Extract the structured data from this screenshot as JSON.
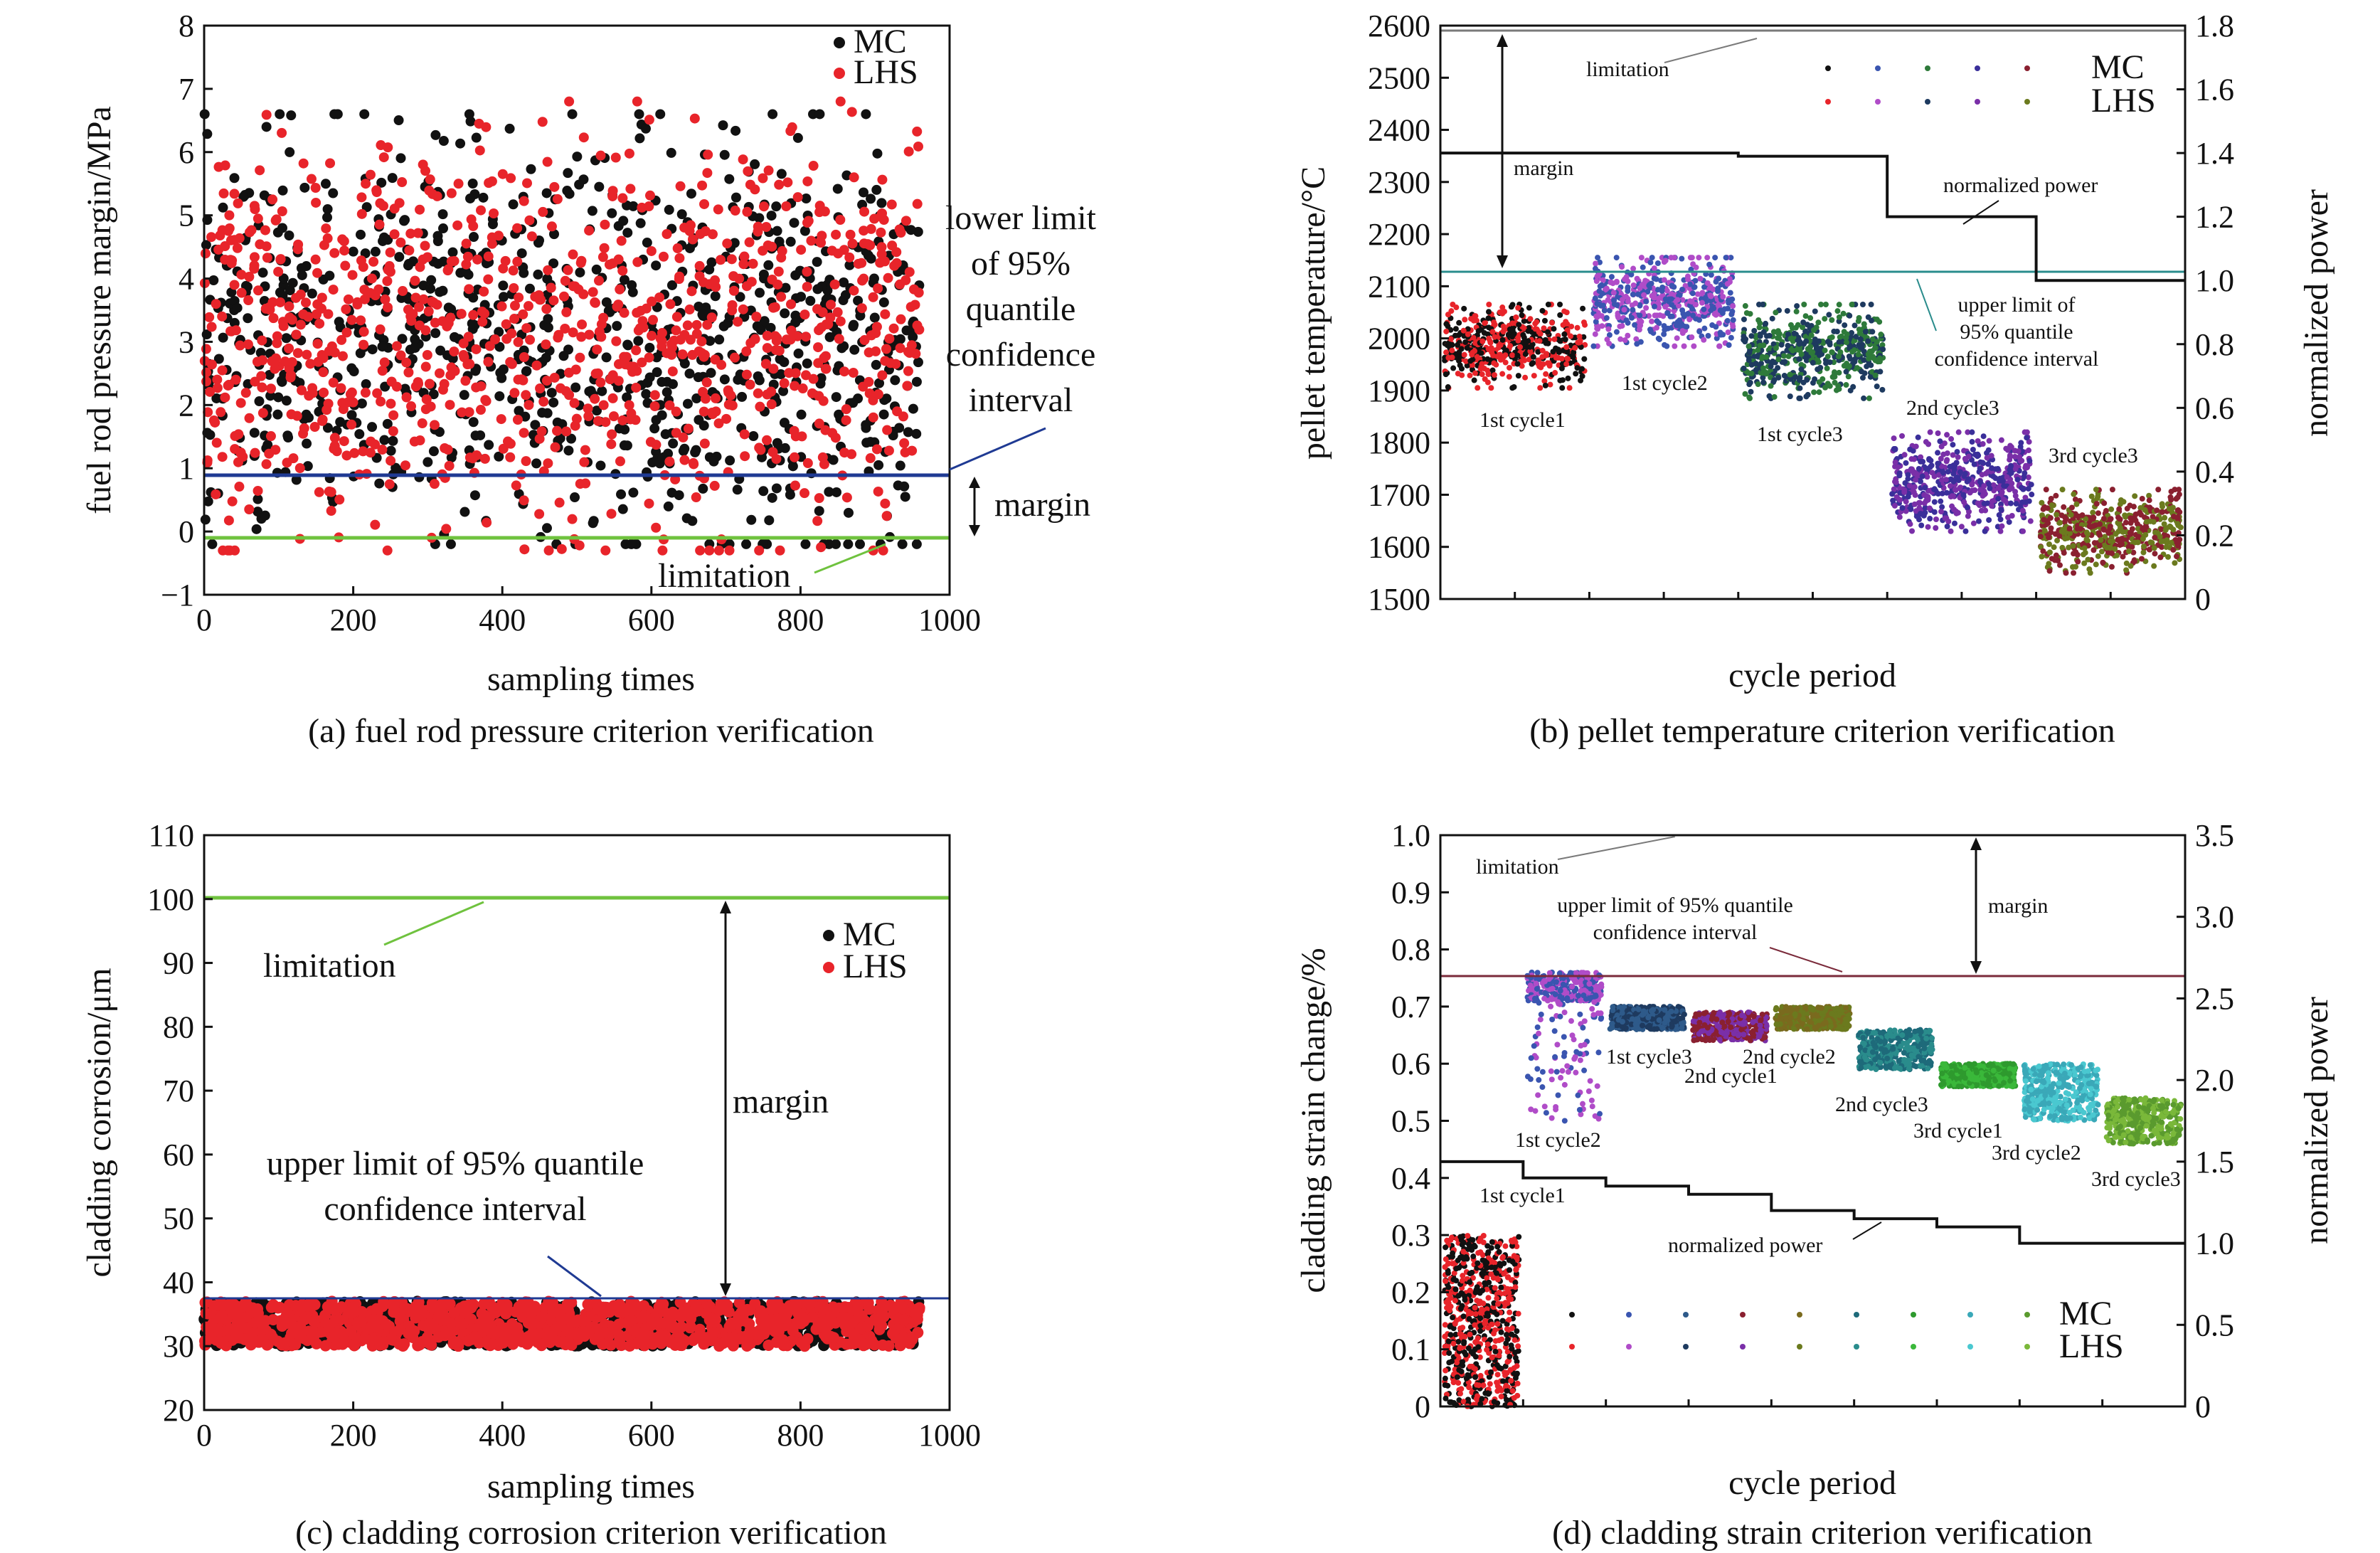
{
  "colors": {
    "mc": "#111111",
    "lhs": "#e8242a",
    "limitation_a": "#6fc23e",
    "quantile_a": "#1f3a93",
    "limit_line": "#7a7a7a",
    "teal_line": "#2a8c8c",
    "maroon_line": "#7a2a3a",
    "power": "#111111"
  },
  "chart_data": [
    {
      "id": "a",
      "type": "scatter",
      "caption": "(a) fuel rod pressure criterion verification",
      "xlabel": "sampling times",
      "ylabel": "fuel rod pressure margin/MPa",
      "xlim": [
        0,
        1000
      ],
      "ylim": [
        -1,
        8
      ],
      "xticks": [
        "0",
        "200",
        "400",
        "600",
        "800",
        "1000"
      ],
      "yticks": [
        "−1",
        "0",
        "1",
        "2",
        "3",
        "4",
        "5",
        "6",
        "7",
        "8"
      ],
      "series": [
        {
          "name": "MC",
          "color": "#111111",
          "n": 960,
          "x_range": [
            0,
            960
          ],
          "y_mean": 3.0,
          "y_spread": 1.55,
          "y_min": -0.2,
          "y_max": 6.6
        },
        {
          "name": "LHS",
          "color": "#e8242a",
          "n": 960,
          "x_range": [
            0,
            960
          ],
          "y_mean": 3.0,
          "y_spread": 1.55,
          "y_min": -0.3,
          "y_max": 6.8
        }
      ],
      "hlines": [
        {
          "role": "quantile",
          "y": 1.0,
          "color": "#1f3a93"
        },
        {
          "role": "limitation",
          "y": 0.0,
          "color": "#6fc23e"
        }
      ],
      "annotations": {
        "quantile": [
          "lower limit",
          "of 95%",
          "quantile",
          "confidence",
          "interval"
        ],
        "margin": "margin",
        "limitation": "limitation"
      }
    },
    {
      "id": "b",
      "type": "scatter",
      "caption": "(b) pellet temperature criterion verification",
      "xlabel": "cycle period",
      "ylabel": "pellet temperature/°C",
      "ylabel2": "normalized power",
      "ylim": [
        1500,
        2600
      ],
      "ylim2": [
        0,
        1.8
      ],
      "yticks": [
        "1500",
        "1600",
        "1700",
        "1800",
        "1900",
        "2000",
        "2100",
        "2200",
        "2300",
        "2400",
        "2500",
        "2600"
      ],
      "yticks2": [
        "0",
        "0.2",
        "0.4",
        "0.6",
        "0.8",
        "1.0",
        "1.2",
        "1.4",
        "1.6",
        "1.8"
      ],
      "limitation": 2590,
      "upper_quantile": 2125,
      "groups": [
        {
          "label": "1st cycle1",
          "center": 1985,
          "half_range": 80,
          "colors": [
            "#e8242a",
            "#111111"
          ]
        },
        {
          "label": "1st cycle2",
          "center": 2070,
          "half_range": 85,
          "colors": [
            "#b04cc8",
            "#3a55b0"
          ]
        },
        {
          "label": "1st cycle3",
          "center": 1975,
          "half_range": 90,
          "colors": [
            "#1e3a5f",
            "#2e7a3a"
          ]
        },
        {
          "label": "2nd cycle3",
          "center": 1725,
          "half_range": 95,
          "colors": [
            "#7a2fa8",
            "#3a2f9a"
          ]
        },
        {
          "label": "3rd cycle3",
          "center": 1630,
          "half_range": 80,
          "colors": [
            "#6b7a1e",
            "#8a2030"
          ]
        }
      ],
      "normalized_power": [
        1.4,
        1.4,
        1.39,
        1.2,
        1.0
      ],
      "annotations": {
        "limitation": "limitation",
        "margin": "margin",
        "normalized_power": "normalized power",
        "quantile": [
          "upper limit of",
          "95% quantile",
          "confidence interval"
        ]
      },
      "legend": {
        "MC": "MC",
        "LHS": "LHS"
      }
    },
    {
      "id": "c",
      "type": "scatter",
      "caption": "(c) cladding corrosion criterion verification",
      "xlabel": "sampling times",
      "ylabel": "cladding corrosion/μm",
      "xlim": [
        0,
        1000
      ],
      "ylim": [
        20,
        110
      ],
      "xticks": [
        "0",
        "200",
        "400",
        "600",
        "800",
        "1000"
      ],
      "yticks": [
        "20",
        "30",
        "40",
        "50",
        "60",
        "70",
        "80",
        "90",
        "100",
        "110"
      ],
      "series": [
        {
          "name": "MC",
          "color": "#111111",
          "n": 960,
          "x_range": [
            0,
            960
          ],
          "y_min": 30,
          "y_max": 37
        },
        {
          "name": "LHS",
          "color": "#e8242a",
          "n": 960,
          "x_range": [
            0,
            960
          ],
          "y_min": 30,
          "y_max": 37
        }
      ],
      "hlines": [
        {
          "role": "limitation",
          "y": 100,
          "color": "#6fc23e"
        },
        {
          "role": "quantile",
          "y": 37.2,
          "color": "#1f3a93"
        }
      ],
      "annotations": {
        "limitation": "limitation",
        "margin": "margin",
        "quantile": [
          "upper limit of 95% quantile",
          "confidence interval"
        ]
      }
    },
    {
      "id": "d",
      "type": "scatter",
      "caption": "(d) cladding strain criterion verification",
      "xlabel": "cycle period",
      "ylabel": "cladding strain change/%",
      "ylabel2": "normalized power",
      "ylim": [
        0,
        1.0
      ],
      "ylim2": [
        0,
        3.5
      ],
      "yticks": [
        "0",
        "0.1",
        "0.2",
        "0.3",
        "0.4",
        "0.5",
        "0.6",
        "0.7",
        "0.8",
        "0.9",
        "1.0"
      ],
      "yticks2": [
        "0",
        "0.5",
        "1.0",
        "1.5",
        "2.0",
        "2.5",
        "3.0",
        "3.5"
      ],
      "limitation": 1.0,
      "upper_quantile": 0.75,
      "groups": [
        {
          "label": "1st cycle1",
          "lo": 0.0,
          "hi": 0.3,
          "colors": [
            "#e8242a",
            "#111111"
          ]
        },
        {
          "label": "1st cycle2",
          "lo": 0.5,
          "hi": 0.76,
          "colors": [
            "#b04cc8",
            "#3a55b0"
          ]
        },
        {
          "label": "1st cycle3",
          "lo": 0.66,
          "hi": 0.7,
          "colors": [
            "#1e3a5f",
            "#2e5a8a"
          ]
        },
        {
          "label": "2nd cycle1",
          "lo": 0.64,
          "hi": 0.69,
          "colors": [
            "#7a2fa8",
            "#8a2030"
          ]
        },
        {
          "label": "2nd cycle2",
          "lo": 0.66,
          "hi": 0.7,
          "colors": [
            "#6b7a1e",
            "#7a6a1e"
          ]
        },
        {
          "label": "2nd cycle3",
          "lo": 0.59,
          "hi": 0.66,
          "colors": [
            "#2a8c8c",
            "#1e6a7a"
          ]
        },
        {
          "label": "3rd cycle1",
          "lo": 0.56,
          "hi": 0.6,
          "colors": [
            "#3ab83a",
            "#2e9a2e"
          ]
        },
        {
          "label": "3rd cycle2",
          "lo": 0.5,
          "hi": 0.6,
          "colors": [
            "#4ac8d0",
            "#3aa8b8"
          ]
        },
        {
          "label": "3rd cycle3",
          "lo": 0.46,
          "hi": 0.54,
          "colors": [
            "#7ab83a",
            "#5a9a2e"
          ]
        }
      ],
      "normalized_power": [
        1.5,
        1.4,
        1.35,
        1.3,
        1.2,
        1.15,
        1.1,
        1.0,
        1.0
      ],
      "annotations": {
        "limitation": "limitation",
        "margin": "margin",
        "normalized_power": "normalized power",
        "quantile": [
          "upper limit of 95% quantile",
          "confidence interval"
        ]
      },
      "legend": {
        "MC": "MC",
        "LHS": "LHS"
      }
    }
  ]
}
